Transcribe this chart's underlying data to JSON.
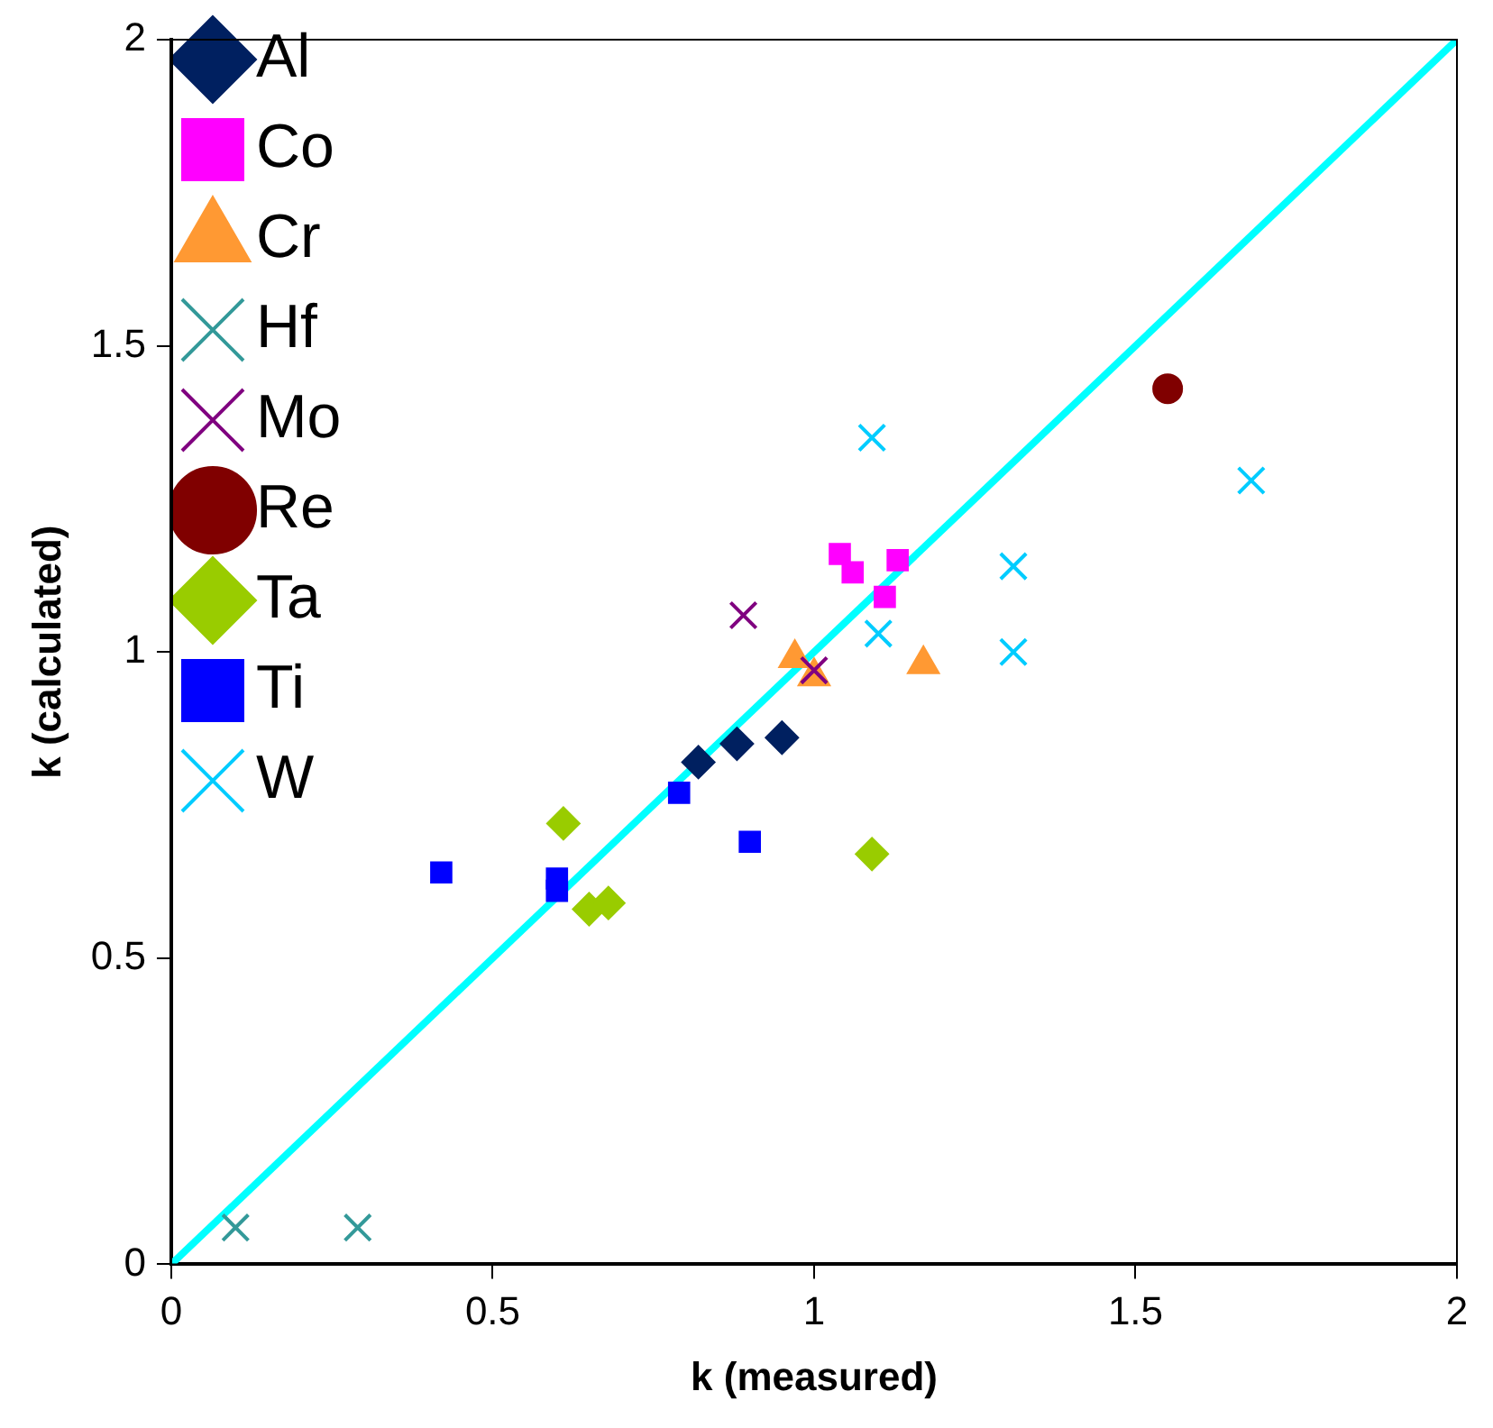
{
  "chart_data": {
    "type": "scatter",
    "xlabel": "k (measured)",
    "ylabel": "k (calculated)",
    "xlim": [
      0,
      2
    ],
    "ylim": [
      0,
      2
    ],
    "xticks": [
      0,
      0.5,
      1,
      1.5,
      2
    ],
    "yticks": [
      0,
      0.5,
      1,
      1.5,
      2
    ],
    "legend": "top left",
    "grid": false,
    "series": [
      {
        "name": "Al",
        "color": "#002060",
        "marker": "diamond",
        "x": [
          0.82,
          0.88,
          0.95
        ],
        "values": [
          0.82,
          0.85,
          0.86
        ]
      },
      {
        "name": "Co",
        "color": "#ff00ff",
        "marker": "square",
        "x": [
          1.04,
          1.06,
          1.13,
          1.11
        ],
        "values": [
          1.16,
          1.13,
          1.15,
          1.09
        ]
      },
      {
        "name": "Cr",
        "color": "#ff9933",
        "marker": "triangle",
        "x": [
          0.97,
          1.0,
          1.17
        ],
        "values": [
          0.99,
          0.96,
          0.98
        ]
      },
      {
        "name": "Hf",
        "color": "#339999",
        "marker": "cross",
        "x": [
          0.1,
          0.29
        ],
        "values": [
          0.06,
          0.06
        ]
      },
      {
        "name": "Mo",
        "color": "#800080",
        "marker": "cross",
        "x": [
          0.89,
          1.0
        ],
        "values": [
          1.06,
          0.97
        ]
      },
      {
        "name": "Re",
        "color": "#800000",
        "marker": "circle",
        "x": [
          1.55
        ],
        "values": [
          1.43
        ]
      },
      {
        "name": "Ta",
        "color": "#99cc00",
        "marker": "diamond",
        "x": [
          0.61,
          0.65,
          0.68,
          1.09
        ],
        "values": [
          0.72,
          0.58,
          0.59,
          0.67
        ]
      },
      {
        "name": "Ti",
        "color": "#0000ff",
        "marker": "square",
        "x": [
          0.42,
          0.6,
          0.6,
          0.79,
          0.9
        ],
        "values": [
          0.64,
          0.63,
          0.61,
          0.77,
          0.69
        ]
      },
      {
        "name": "W",
        "color": "#00ccff",
        "marker": "cross",
        "x": [
          1.09,
          1.1,
          1.31,
          1.31,
          1.68
        ],
        "values": [
          1.35,
          1.03,
          1.14,
          1.0,
          1.28
        ]
      },
      {
        "type": "line",
        "color": "#00ffff",
        "marker": "none",
        "x": [
          0,
          2
        ],
        "values": [
          0,
          2
        ]
      }
    ]
  }
}
